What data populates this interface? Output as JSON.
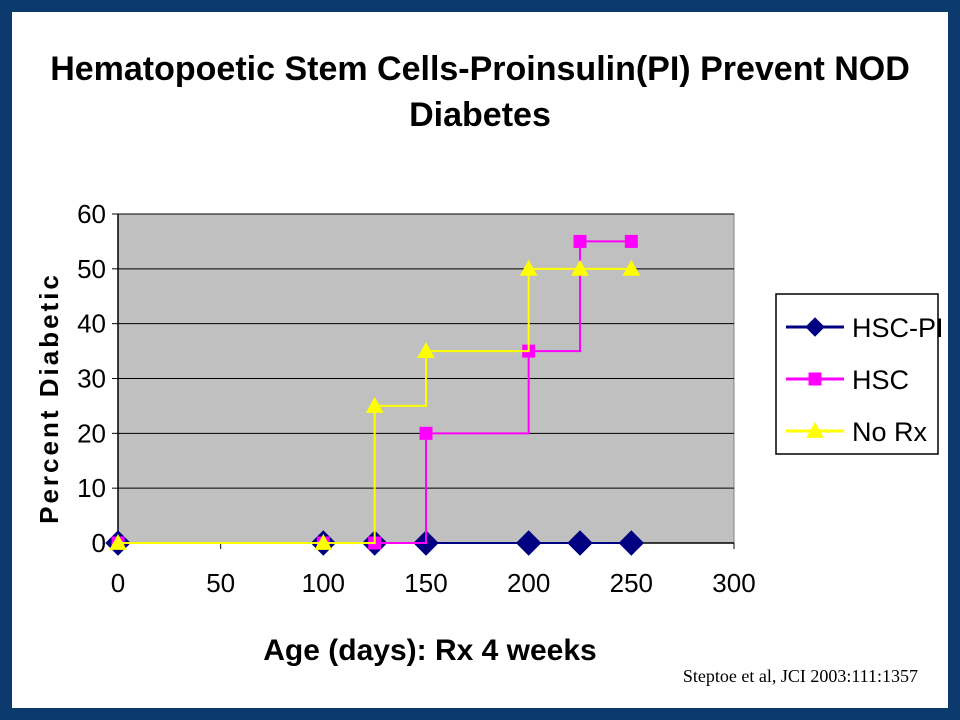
{
  "slide": {
    "background": "#0d3a6e",
    "citation": "Steptoe et al, JCI 2003:111:1357"
  },
  "chart_data": {
    "type": "line",
    "step": true,
    "title": [
      "Hematopoetic Stem Cells-Proinsulin(PI) Prevent NOD",
      "Diabetes"
    ],
    "xlabel": "Age (days): Rx 4 weeks",
    "ylabel": "Percent Diabetic",
    "xlim": [
      0,
      300
    ],
    "ylim": [
      0,
      60
    ],
    "xticks": [
      0,
      50,
      100,
      150,
      200,
      250,
      300
    ],
    "yticks": [
      0,
      10,
      20,
      30,
      40,
      50,
      60
    ],
    "grid": true,
    "plot_background": "#c0c0c0",
    "legend_position": "right",
    "series": [
      {
        "name": "HSC-PI",
        "color": "#000080",
        "marker": "diamond",
        "x": [
          0,
          100,
          125,
          150,
          200,
          225,
          250
        ],
        "y": [
          0,
          0,
          0,
          0,
          0,
          0,
          0
        ]
      },
      {
        "name": "HSC",
        "color": "#ff00ff",
        "marker": "square",
        "x": [
          0,
          100,
          125,
          150,
          200,
          225,
          250
        ],
        "y": [
          0,
          0,
          0,
          20,
          35,
          55,
          55
        ]
      },
      {
        "name": "No Rx",
        "color": "#ffff00",
        "marker": "triangle",
        "x": [
          0,
          100,
          125,
          150,
          200,
          225,
          250
        ],
        "y": [
          0,
          0,
          25,
          35,
          50,
          50,
          50
        ]
      }
    ]
  }
}
